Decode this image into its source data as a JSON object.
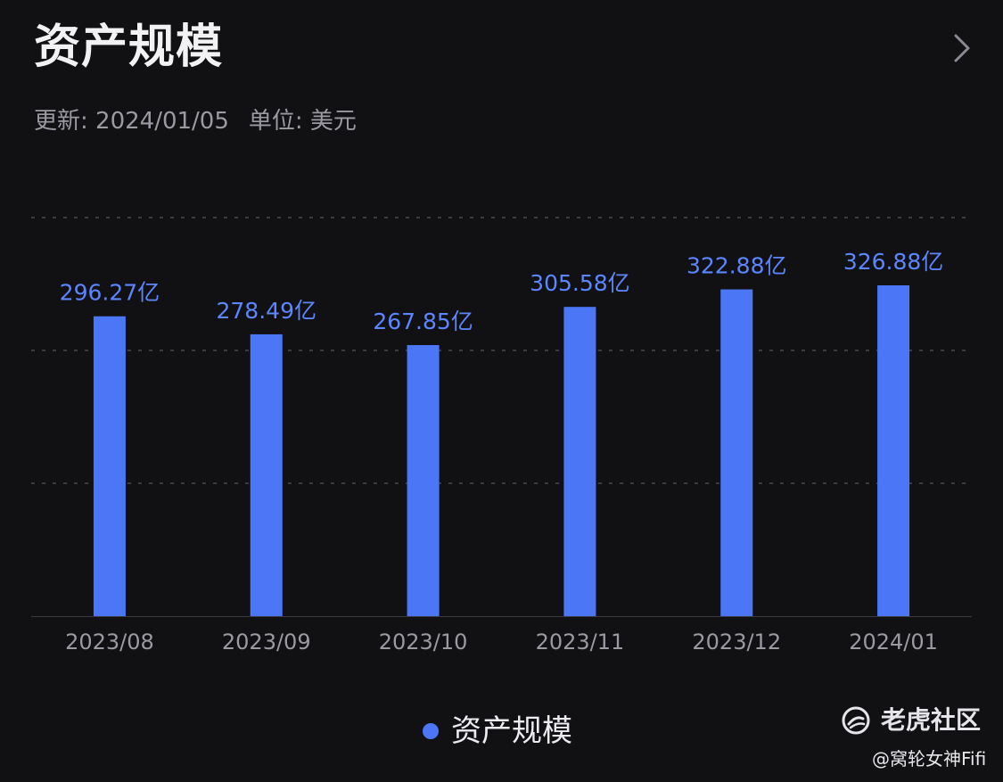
{
  "header": {
    "title": "资产规模",
    "updated": "更新: 2024/01/05",
    "unit": "单位: 美元"
  },
  "colors": {
    "background": "#111114",
    "bar": "#4b77f7",
    "label": "#5b86ff",
    "axis_text": "#9a9aa2",
    "grid": "#3a3a40"
  },
  "chart_data": {
    "type": "bar",
    "categories": [
      "2023/08",
      "2023/09",
      "2023/10",
      "2023/11",
      "2023/12",
      "2024/01"
    ],
    "series": [
      {
        "name": "资产规模",
        "values": [
          296.27,
          278.49,
          267.85,
          305.58,
          322.88,
          326.88
        ]
      }
    ],
    "value_labels": [
      "296.27亿",
      "278.49亿",
      "267.85亿",
      "305.58亿",
      "322.88亿",
      "326.88亿"
    ],
    "ylim": [
      0,
      400
    ],
    "grid": true,
    "legend": "bottom-center"
  },
  "legend": {
    "label": "资产规模"
  },
  "watermark": {
    "brand": "老虎社区",
    "user": "@窝轮女神Fifi"
  },
  "icons": {
    "next": "chevron-right-icon",
    "brand_logo": "tiger-logo-icon"
  }
}
